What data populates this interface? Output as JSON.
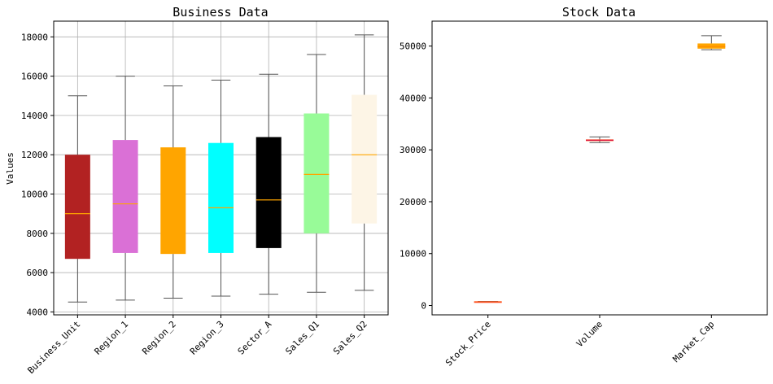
{
  "chart_data": [
    {
      "type": "box",
      "title": "Business Data",
      "xlabel": "",
      "ylabel": "Values",
      "ylim": [
        3850,
        18800
      ],
      "yticks": [
        4000,
        6000,
        8000,
        10000,
        12000,
        14000,
        16000,
        18000
      ],
      "grid": true,
      "categories": [
        "Business_Unit",
        "Region_1",
        "Region_2",
        "Region_3",
        "Sector_A",
        "Sales_Q1",
        "Sales_Q2"
      ],
      "boxes": [
        {
          "min": 4500,
          "q1": 6700,
          "median": 9000,
          "q3": 12000,
          "max": 15000,
          "color": "#b22222"
        },
        {
          "min": 4600,
          "q1": 7000,
          "median": 9500,
          "q3": 12750,
          "max": 16000,
          "color": "#da70d6"
        },
        {
          "min": 4700,
          "q1": 6950,
          "median": 12350,
          "q3": 12350,
          "max": 15500,
          "color": "#ffa500"
        },
        {
          "min": 4800,
          "q1": 7000,
          "median": 9300,
          "q3": 12600,
          "max": 15800,
          "color": "#00ffff"
        },
        {
          "min": 4900,
          "q1": 7250,
          "median": 9700,
          "q3": 12900,
          "max": 16100,
          "color": "#000000"
        },
        {
          "min": 5000,
          "q1": 8000,
          "median": 11000,
          "q3": 14100,
          "max": 17100,
          "color": "#98fb98"
        },
        {
          "min": 5100,
          "q1": 8500,
          "median": 12000,
          "q3": 15050,
          "max": 18100,
          "color": "#fdf5e6"
        }
      ],
      "median_color": "#ffa500",
      "whisker_color": "#555555"
    },
    {
      "type": "box",
      "title": "Stock Data",
      "xlabel": "",
      "ylabel": "",
      "ylim": [
        -1800,
        54800
      ],
      "yticks": [
        0,
        10000,
        20000,
        30000,
        40000,
        50000
      ],
      "grid": false,
      "categories": [
        "Stock_Price",
        "Volume",
        "Market_Cap"
      ],
      "boxes": [
        {
          "min": 680,
          "q1": 700,
          "median": 720,
          "q3": 740,
          "max": 760,
          "color": "#ff6347",
          "median_color": "#ff4500"
        },
        {
          "min": 31400,
          "q1": 31700,
          "median": 31850,
          "q3": 32000,
          "max": 32500,
          "color": "#ff4500",
          "median_color": "#dc143c"
        },
        {
          "min": 49300,
          "q1": 49500,
          "median": 49900,
          "q3": 50500,
          "max": 52000,
          "color": "#ffa500",
          "median_color": "#ff8c00"
        }
      ],
      "whisker_color": "#555555"
    }
  ]
}
